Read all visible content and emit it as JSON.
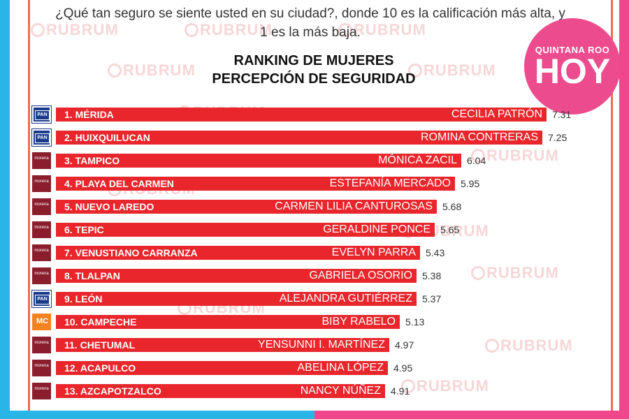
{
  "question": "¿Qué tan seguro se siente usted en su ciudad?, donde 10 es la calificación más alta, y  1 es la más baja.",
  "watermark": "RUBRUM",
  "logo": {
    "top": "QUINTANA ROO",
    "main": "HOY"
  },
  "colors": {
    "bar": "#e8262c",
    "frame_left": "#29b6e6",
    "frame_right": "#f0468c"
  },
  "chart_data": {
    "type": "bar",
    "orientation": "horizontal",
    "title": "RANKING DE MUJERES",
    "subtitle": "PERCEPCIÓN DE SEGURIDAD",
    "categories": [
      "1. MÉRIDA",
      "2. HUIXQUILUCAN",
      "3. TAMPICO",
      "4. PLAYA DEL CARMEN",
      "5. NUEVO LAREDO",
      "6. TEPIC",
      "7. VENUSTIANO CARRANZA",
      "8. TLALPAN",
      "9. LEÓN",
      "10. CAMPECHE",
      "11. CHETUMAL",
      "12. ACAPULCO",
      "13. AZCAPOTZALCO"
    ],
    "names": [
      "CECILIA PATRÓN",
      "ROMINA CONTRERAS",
      "MÓNICA ZACIL",
      "ESTEFANÍA MERCADO",
      "CARMEN LILIA CANTUROSAS",
      "GERALDINE PONCE",
      "EVELYN PARRA",
      "GABRIELA OSORIO",
      "ALEJANDRA GUTIÉRREZ",
      "BIBY RABELO",
      "YENSUNNI I. MARTÍNEZ",
      "ABELINA LÓPEZ",
      "NANCY NÚÑEZ"
    ],
    "parties": [
      "PAN",
      "PAN",
      "morena",
      "morena",
      "morena",
      "morena",
      "morena",
      "morena",
      "PAN",
      "MC",
      "morena",
      "morena",
      "morena"
    ],
    "value_labels": [
      "7.31",
      "7.25",
      "6.04",
      "5.95",
      "5.68",
      "5.65",
      "5.43",
      "5.38",
      "5.37",
      "5.13",
      "4.97",
      "4.95",
      "4.91"
    ],
    "values": [
      7.31,
      7.25,
      6.04,
      5.95,
      5.68,
      5.65,
      5.43,
      5.38,
      5.37,
      5.13,
      4.97,
      4.95,
      4.91
    ]
  }
}
